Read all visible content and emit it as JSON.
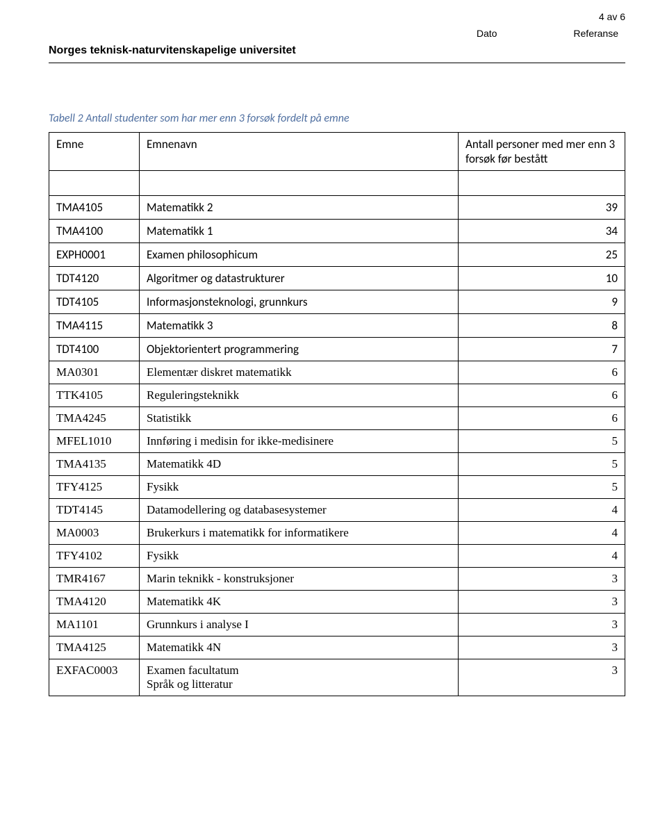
{
  "header": {
    "page_number": "4 av 6",
    "date_label": "Dato",
    "ref_label": "Referanse",
    "institution": "Norges teknisk-naturvitenskapelige universitet"
  },
  "caption": "Tabell 2 Antall studenter som har mer enn 3 forsøk fordelt på emne",
  "table": {
    "columns": [
      "Emne",
      "Emnenavn",
      "Antall personer med mer enn 3 forsøk før bestått"
    ],
    "rows": [
      {
        "code": "TMA4105",
        "name": "Matematikk 2",
        "count": "39",
        "font": "sans"
      },
      {
        "code": "TMA4100",
        "name": "Matematikk 1",
        "count": "34",
        "font": "sans"
      },
      {
        "code": "EXPH0001",
        "name": "Examen philosophicum",
        "count": "25",
        "font": "sans"
      },
      {
        "code": "TDT4120",
        "name": "Algoritmer og datastrukturer",
        "count": "10",
        "font": "sans"
      },
      {
        "code": "TDT4105",
        "name": "Informasjonsteknologi, grunnkurs",
        "count": "9",
        "font": "sans"
      },
      {
        "code": "TMA4115",
        "name": "Matematikk 3",
        "count": "8",
        "font": "sans"
      },
      {
        "code": "TDT4100",
        "name": "Objektorientert programmering",
        "count": "7",
        "font": "sans"
      },
      {
        "code": "MA0301",
        "name": "Elementær diskret matematikk",
        "count": "6",
        "font": "serif"
      },
      {
        "code": "TTK4105",
        "name": "Reguleringsteknikk",
        "count": "6",
        "font": "serif"
      },
      {
        "code": "TMA4245",
        "name": "Statistikk",
        "count": "6",
        "font": "serif"
      },
      {
        "code": "MFEL1010",
        "name": "Innføring i medisin for ikke-medisinere",
        "count": "5",
        "font": "serif"
      },
      {
        "code": "TMA4135",
        "name": "Matematikk 4D",
        "count": "5",
        "font": "serif"
      },
      {
        "code": "TFY4125",
        "name": "Fysikk",
        "count": "5",
        "font": "serif"
      },
      {
        "code": "TDT4145",
        "name": "Datamodellering og databasesystemer",
        "count": "4",
        "font": "serif"
      },
      {
        "code": "MA0003",
        "name": "Brukerkurs i matematikk for informatikere",
        "count": "4",
        "font": "serif"
      },
      {
        "code": "TFY4102",
        "name": "Fysikk",
        "count": "4",
        "font": "serif"
      },
      {
        "code": "TMR4167",
        "name": "Marin teknikk - konstruksjoner",
        "count": "3",
        "font": "serif"
      },
      {
        "code": "TMA4120",
        "name": "Matematikk 4K",
        "count": "3",
        "font": "serif"
      },
      {
        "code": "MA1101",
        "name": "Grunnkurs i analyse I",
        "count": "3",
        "font": "serif"
      },
      {
        "code": "TMA4125",
        "name": "Matematikk 4N",
        "count": "3",
        "font": "serif"
      },
      {
        "code": "EXFAC0003",
        "name": "Examen facultatum\nSpråk og litteratur",
        "count": "3",
        "font": "serif"
      }
    ]
  }
}
